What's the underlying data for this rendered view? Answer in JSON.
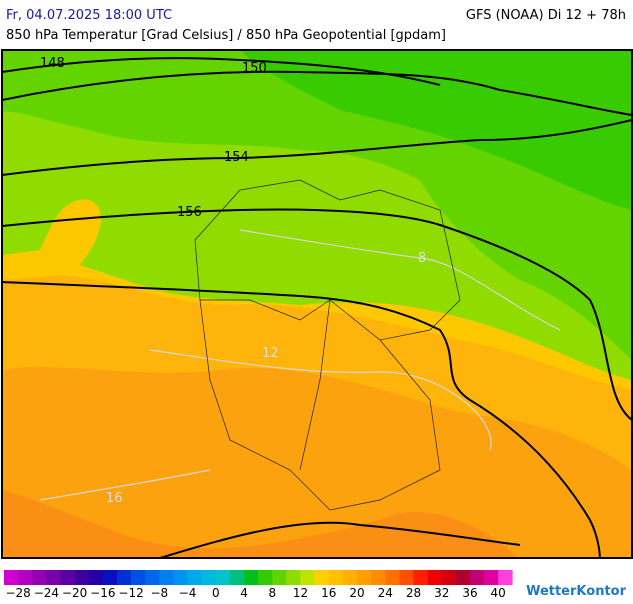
{
  "header": {
    "left": "Fr, 04.07.2025 18:00 UTC",
    "right": "GFS (NOAA) Di 12 + 78h",
    "subtitle": "850 hPa Temperatur [Grad Celsius] / 850 hPa Geopotential [gpdam]"
  },
  "map": {
    "contour_labels": [
      "148",
      "150",
      "154",
      "156"
    ],
    "isotherm_labels": [
      "8",
      "12",
      "16"
    ]
  },
  "colorbar": {
    "labels": [
      "−28",
      "−24",
      "−20",
      "−16",
      "−12",
      "−8",
      "−4",
      "0",
      "4",
      "8",
      "12",
      "16",
      "20",
      "24",
      "28",
      "32",
      "36",
      "40"
    ],
    "colors": [
      "#d000d0",
      "#b000c0",
      "#9400b4",
      "#7a00aa",
      "#5c00a4",
      "#3c00a0",
      "#2000a8",
      "#0a10c0",
      "#0030d8",
      "#0050e4",
      "#0068ec",
      "#0080f0",
      "#0094f0",
      "#00a8ec",
      "#00b8e0",
      "#00c4c8",
      "#00c080",
      "#00c020",
      "#30cc00",
      "#60d400",
      "#90dc00",
      "#c0e400",
      "#ffd000",
      "#ffc000",
      "#ffb000",
      "#ffa000",
      "#ff8c00",
      "#ff7000",
      "#ff5000",
      "#ff2000",
      "#f00000",
      "#d00010",
      "#b00030",
      "#c00070",
      "#e000a0",
      "#ff40e0"
    ]
  },
  "brand": "WetterKontor"
}
